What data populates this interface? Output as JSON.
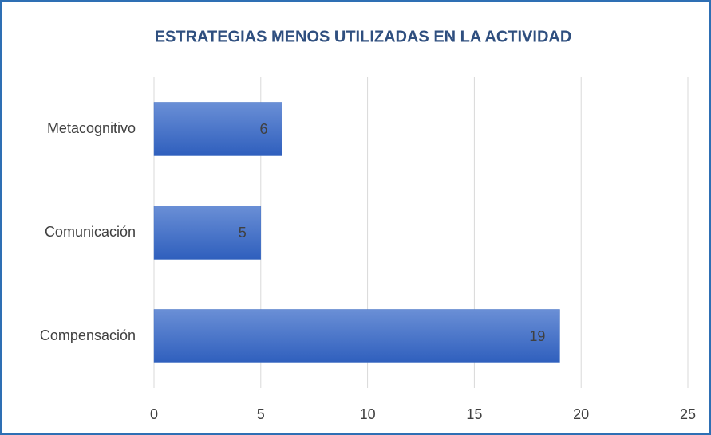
{
  "chart_data": {
    "type": "bar",
    "orientation": "horizontal",
    "title": "ESTRATEGIAS MENOS UTILIZADAS EN LA ACTIVIDAD",
    "categories": [
      "Metacognitivo",
      "Comunicación",
      "Compensación"
    ],
    "values": [
      6,
      5,
      19
    ],
    "color": "#4472c4",
    "xlim": [
      0,
      25
    ],
    "xticks": [
      0,
      5,
      10,
      15,
      20,
      25
    ],
    "grid": true
  }
}
